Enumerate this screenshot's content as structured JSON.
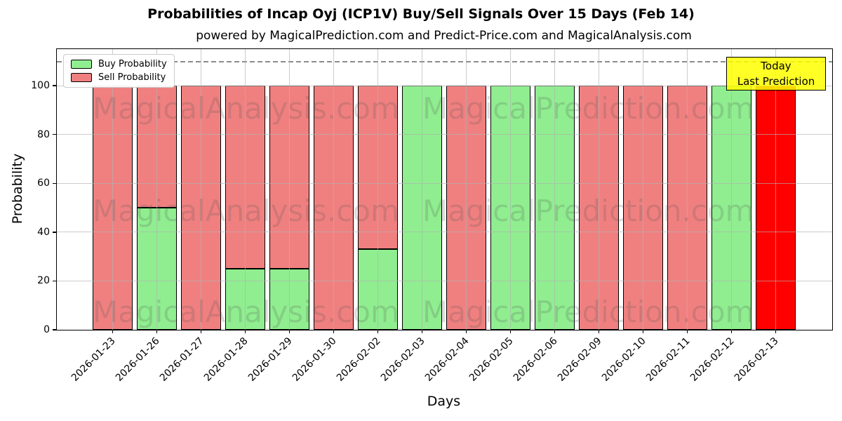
{
  "title": "Probabilities of Incap Oyj (ICP1V) Buy/Sell Signals Over 15 Days (Feb 14)",
  "subtitle": "powered by MagicalPrediction.com and Predict-Price.com and MagicalAnalysis.com",
  "legend": {
    "buy_label": "Buy Probability",
    "sell_label": "Sell Probability"
  },
  "annotation_box": {
    "line1": "Today",
    "line2": "Last Prediction"
  },
  "watermarks": {
    "left": "MagicalAnalysis.com",
    "right": "MagicalPrediction.com"
  },
  "colors": {
    "buy": "#90EE90",
    "sell": "#F08080",
    "last_prediction_sell": "#FF0000",
    "annotation_bg": "#FFFF00",
    "grid": "#b0b0b0",
    "dashed_line": "#8c8c8c",
    "bar_edge": "#000000"
  },
  "chart_data": {
    "type": "bar",
    "stacked": true,
    "title": "Probabilities of Incap Oyj (ICP1V) Buy/Sell Signals Over 15 Days (Feb 14)",
    "subtitle": "powered by MagicalPrediction.com and Predict-Price.com and MagicalAnalysis.com",
    "xlabel": "Days",
    "ylabel": "Probability",
    "ylim": [
      0,
      115
    ],
    "yticks": [
      0,
      20,
      40,
      60,
      80,
      100
    ],
    "grid": true,
    "dashed_line_y": 110,
    "legend_position": "upper left",
    "categories": [
      "2026-01-23",
      "2026-01-26",
      "2026-01-27",
      "2026-01-28",
      "2026-01-29",
      "2026-01-30",
      "2026-02-02",
      "2026-02-03",
      "2026-02-04",
      "2026-02-05",
      "2026-02-06",
      "2026-02-09",
      "2026-02-10",
      "2026-02-11",
      "2026-02-12",
      "2026-02-13"
    ],
    "series": [
      {
        "name": "Buy Probability",
        "color": "#90EE90",
        "values": [
          0,
          50,
          0,
          25,
          25,
          0,
          33,
          100,
          0,
          100,
          100,
          0,
          0,
          0,
          100,
          0
        ]
      },
      {
        "name": "Sell Probability",
        "color": "#F08080",
        "values": [
          100,
          50,
          100,
          75,
          75,
          100,
          67,
          0,
          100,
          0,
          0,
          100,
          100,
          100,
          0,
          100
        ]
      }
    ],
    "last_bar": {
      "index": 15,
      "sell_color": "#FF0000",
      "note": "Today / Last Prediction"
    }
  }
}
